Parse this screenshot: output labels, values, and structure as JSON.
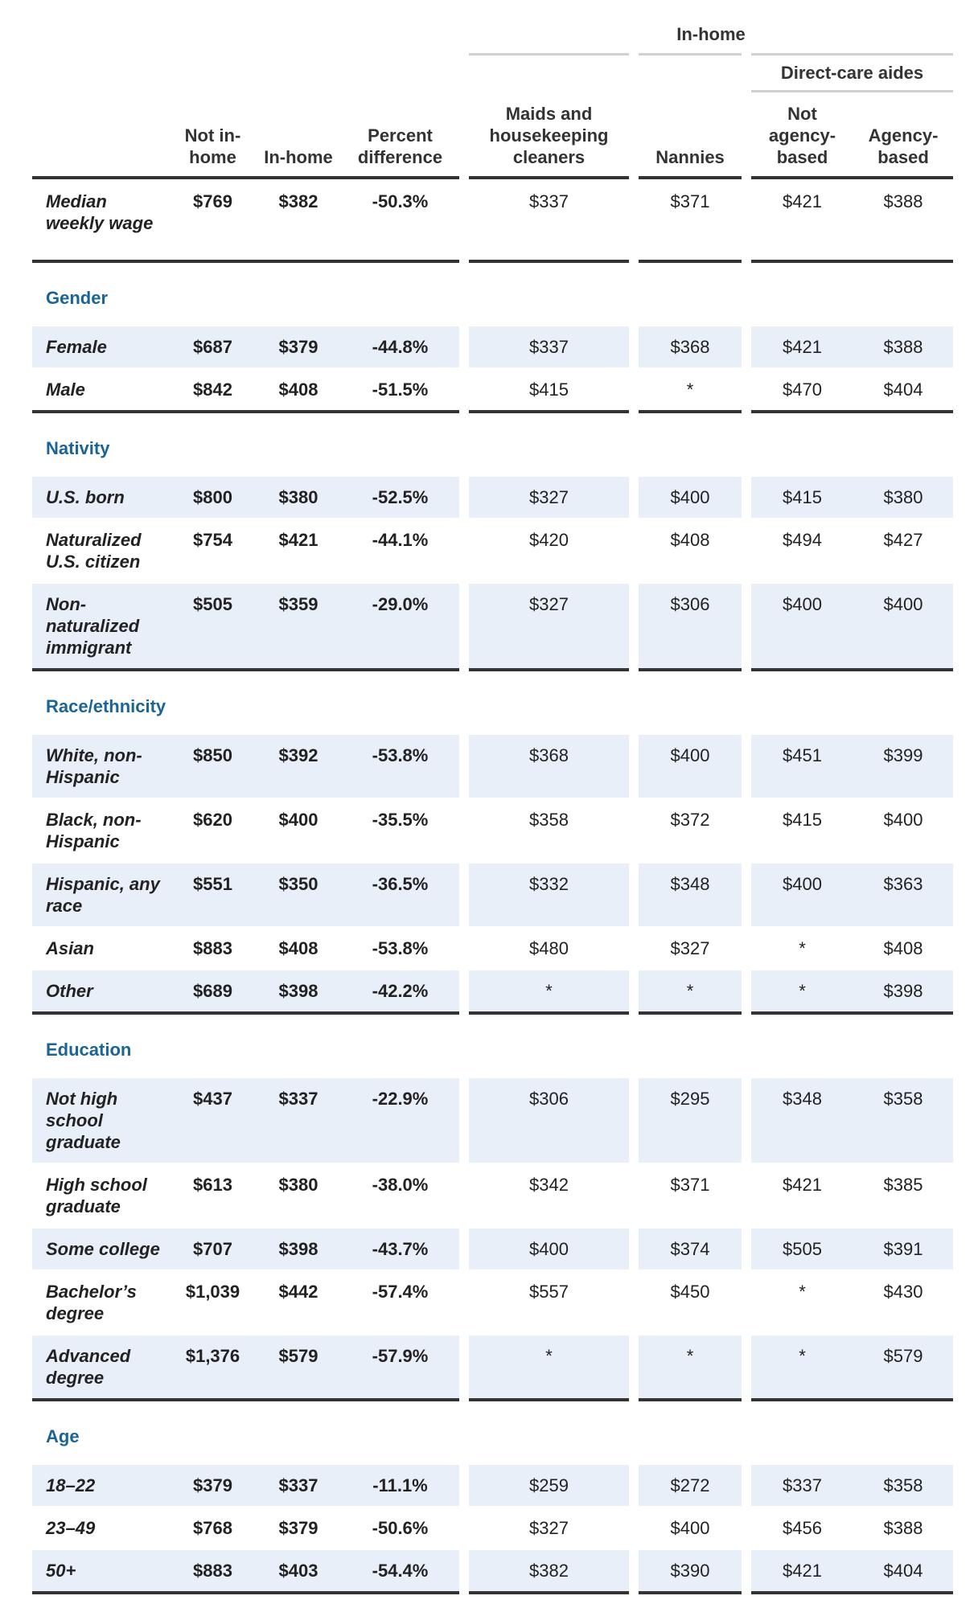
{
  "header": {
    "group_label": "In-home",
    "subgroup_label": "Direct-care aides",
    "columns": [
      "Not in-home",
      "In-home",
      "Percent difference",
      "Maids and housekeeping cleaners",
      "Nannies",
      "Not agency-based",
      "Agency-based"
    ]
  },
  "table": {
    "median": {
      "label": "Median weekly wage",
      "cells": [
        "$769",
        "$382",
        "-50.3%",
        "$337",
        "$371",
        "$421",
        "$388"
      ]
    },
    "sections": [
      {
        "title": "Gender",
        "rows": [
          {
            "label": "Female",
            "cells": [
              "$687",
              "$379",
              "-44.8%",
              "$337",
              "$368",
              "$421",
              "$388"
            ]
          },
          {
            "label": "Male",
            "cells": [
              "$842",
              "$408",
              "-51.5%",
              "$415",
              "*",
              "$470",
              "$404"
            ]
          }
        ]
      },
      {
        "title": "Nativity",
        "rows": [
          {
            "label": "U.S. born",
            "cells": [
              "$800",
              "$380",
              "-52.5%",
              "$327",
              "$400",
              "$415",
              "$380"
            ]
          },
          {
            "label": "Naturalized U.S. citizen",
            "cells": [
              "$754",
              "$421",
              "-44.1%",
              "$420",
              "$408",
              "$494",
              "$427"
            ]
          },
          {
            "label": "Non-naturalized immigrant",
            "cells": [
              "$505",
              "$359",
              "-29.0%",
              "$327",
              "$306",
              "$400",
              "$400"
            ]
          }
        ]
      },
      {
        "title": "Race/ethnicity",
        "rows": [
          {
            "label": "White, non-Hispanic",
            "cells": [
              "$850",
              "$392",
              "-53.8%",
              "$368",
              "$400",
              "$451",
              "$399"
            ]
          },
          {
            "label": "Black, non-Hispanic",
            "cells": [
              "$620",
              "$400",
              "-35.5%",
              "$358",
              "$372",
              "$415",
              "$400"
            ]
          },
          {
            "label": "Hispanic, any race",
            "cells": [
              "$551",
              "$350",
              "-36.5%",
              "$332",
              "$348",
              "$400",
              "$363"
            ]
          },
          {
            "label": "Asian",
            "cells": [
              "$883",
              "$408",
              "-53.8%",
              "$480",
              "$327",
              "*",
              "$408"
            ]
          },
          {
            "label": "Other",
            "cells": [
              "$689",
              "$398",
              "-42.2%",
              "*",
              "*",
              "*",
              "$398"
            ]
          }
        ]
      },
      {
        "title": "Education",
        "rows": [
          {
            "label": "Not high school graduate",
            "cells": [
              "$437",
              "$337",
              "-22.9%",
              "$306",
              "$295",
              "$348",
              "$358"
            ]
          },
          {
            "label": "High school graduate",
            "cells": [
              "$613",
              "$380",
              "-38.0%",
              "$342",
              "$371",
              "$421",
              "$385"
            ]
          },
          {
            "label": "Some college",
            "cells": [
              "$707",
              "$398",
              "-43.7%",
              "$400",
              "$374",
              "$505",
              "$391"
            ]
          },
          {
            "label": "Bachelor’s degree",
            "cells": [
              "$1,039",
              "$442",
              "-57.4%",
              "$557",
              "$450",
              "*",
              "$430"
            ]
          },
          {
            "label": "Advanced degree",
            "cells": [
              "$1,376",
              "$579",
              "-57.9%",
              "*",
              "*",
              "*",
              "$579"
            ]
          }
        ]
      },
      {
        "title": "Age",
        "rows": [
          {
            "label": "18–22",
            "cells": [
              "$379",
              "$337",
              "-11.1%",
              "$259",
              "$272",
              "$337",
              "$358"
            ]
          },
          {
            "label": "23–49",
            "cells": [
              "$768",
              "$379",
              "-50.6%",
              "$327",
              "$400",
              "$456",
              "$388"
            ]
          },
          {
            "label": "50+",
            "cells": [
              "$883",
              "$403",
              "-54.4%",
              "$382",
              "$390",
              "$421",
              "$404"
            ]
          }
        ]
      }
    ]
  }
}
